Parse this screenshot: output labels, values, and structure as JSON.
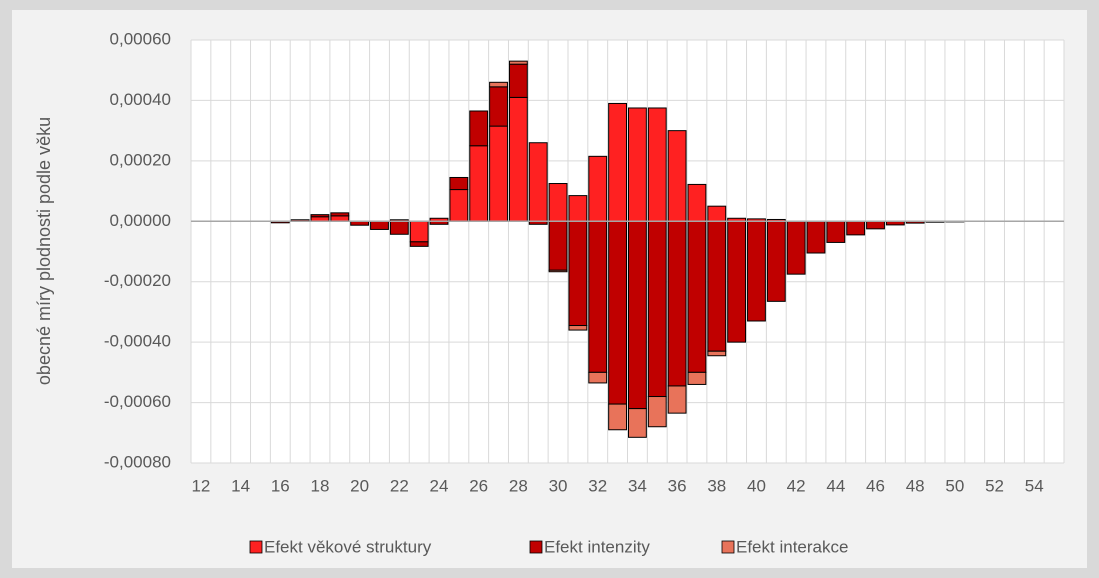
{
  "chart_data": {
    "type": "bar",
    "stacked": true,
    "y_label": "obecné míry plodnosti podle věku",
    "categories": [
      "12",
      null,
      "14",
      null,
      "16",
      null,
      "18",
      null,
      "20",
      null,
      "22",
      null,
      "24",
      null,
      "26",
      null,
      "28",
      null,
      "30",
      null,
      "32",
      null,
      "34",
      null,
      "36",
      null,
      "38",
      null,
      "40",
      null,
      "42",
      null,
      "44",
      null,
      "46",
      null,
      "48",
      null,
      "50",
      null,
      "52",
      null,
      "54",
      null
    ],
    "series": [
      {
        "name": "Efekt věkové struktury",
        "color": "#ff2121",
        "values": [
          0,
          0,
          0,
          0,
          0,
          5e-06,
          1.5e-05,
          1.8e-05,
          0,
          0,
          5e-06,
          -6.8e-05,
          1e-05,
          0.000105,
          0.00025,
          0.000315,
          0.00041,
          0.00026,
          0.000125,
          8.5e-05,
          0.000215,
          0.00039,
          0.000375,
          0.000375,
          0.0003,
          0.000122,
          5e-05,
          1e-05,
          8e-06,
          6e-06,
          0,
          0,
          0,
          0,
          0,
          0,
          0,
          0,
          0,
          0,
          0,
          0,
          0,
          0
        ]
      },
      {
        "name": "Efekt intenzity",
        "color": "#c00000",
        "values": [
          0,
          0,
          0,
          0,
          -5e-06,
          0,
          7e-06,
          1e-05,
          -1.3e-05,
          -2.7e-05,
          -4.3e-05,
          -1.5e-05,
          -1e-05,
          4e-05,
          0.000115,
          0.00013,
          0.00011,
          -1e-05,
          -0.000162,
          -0.000345,
          -0.0005,
          -0.000605,
          -0.00062,
          -0.00058,
          -0.000545,
          -0.0005,
          -0.00043,
          -0.0004,
          -0.00033,
          -0.000265,
          -0.000175,
          -0.000105,
          -7e-05,
          -4.5e-05,
          -2.5e-05,
          -1.2e-05,
          -6e-06,
          -3e-06,
          -2e-06,
          0,
          0,
          0,
          0,
          0
        ]
      },
      {
        "name": "Efekt interakce",
        "color": "#e8735a",
        "values": [
          0,
          0,
          0,
          0,
          0,
          0,
          0,
          0,
          0,
          0,
          0,
          0,
          0,
          0,
          0,
          1.5e-05,
          1e-05,
          0,
          -5e-06,
          -1.5e-05,
          -3.5e-05,
          -8.5e-05,
          -9.5e-05,
          -0.0001,
          -9e-05,
          -4e-05,
          -1.5e-05,
          0,
          0,
          0,
          0,
          0,
          0,
          0,
          0,
          0,
          0,
          0,
          0,
          0,
          0,
          0,
          0,
          0
        ]
      }
    ],
    "ylim": [
      -0.0008,
      0.0006
    ],
    "yticks": [
      {
        "value": -0.0008,
        "label": "-0,00080"
      },
      {
        "value": -0.0006,
        "label": "-0,00060"
      },
      {
        "value": -0.0004,
        "label": "-0,00040"
      },
      {
        "value": -0.0002,
        "label": "-0,00020"
      },
      {
        "value": 0,
        "label": "0,00000"
      },
      {
        "value": 0.0002,
        "label": "0,00020"
      },
      {
        "value": 0.0004,
        "label": "0,00040"
      },
      {
        "value": 0.0006,
        "label": "0,00060"
      }
    ],
    "grid": true,
    "legend": "bottom"
  }
}
